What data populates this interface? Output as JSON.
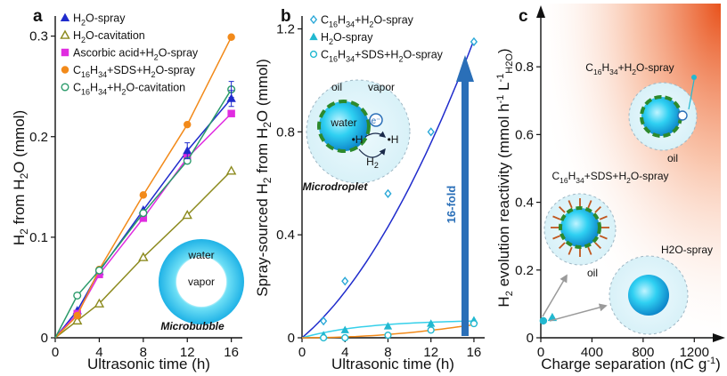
{
  "colors": {
    "blue": "#1f2bcc",
    "olive": "#8c8a1e",
    "magenta": "#e02ce0",
    "orange": "#f28a1a",
    "green": "#2a9a6a",
    "teal": "#22b8d0",
    "cyan_light": "#36d0ea",
    "arrow_blue": "#2a6fb8",
    "gradient_orange": "#e8521c"
  },
  "chart_data": [
    {
      "panel": "a",
      "type": "line",
      "xlabel": "Ultrasonic time (h)",
      "ylabel_parts": [
        "H",
        "2",
        " from H",
        "2",
        "O (mmol)"
      ],
      "xlim": [
        0,
        17
      ],
      "ylim": [
        0,
        0.32
      ],
      "xticks": [
        "0",
        "4",
        "8",
        "12",
        "16"
      ],
      "yticks": [
        "0",
        "0.1",
        "0.2",
        "0.3"
      ],
      "legend": [
        {
          "parts": [
            "H",
            "2",
            "O-spray"
          ],
          "marker": "triangle",
          "color": "blue"
        },
        {
          "parts": [
            "H",
            "2",
            "O-cavitation"
          ],
          "marker": "triangle-open",
          "color": "olive"
        },
        {
          "parts": [
            "Ascorbic acid+H",
            "2",
            "O-spray"
          ],
          "marker": "square",
          "color": "magenta"
        },
        {
          "parts": [
            "C",
            "16",
            "H",
            "34",
            "+SDS+H",
            "2",
            "O-spray"
          ],
          "marker": "circle",
          "color": "orange"
        },
        {
          "parts": [
            "C",
            "16",
            "H",
            "34",
            "+H",
            "2",
            "O-cavitation"
          ],
          "marker": "circle-open",
          "color": "green"
        }
      ],
      "series": [
        {
          "x": [
            2,
            4,
            8,
            12,
            16
          ],
          "values": [
            0.027,
            0.066,
            0.127,
            0.186,
            0.238
          ]
        },
        {
          "x": [
            2,
            4,
            8,
            12,
            16
          ],
          "values": [
            0.017,
            0.034,
            0.08,
            0.122,
            0.166
          ]
        },
        {
          "x": [
            2,
            4,
            8,
            12,
            16
          ],
          "values": [
            0.024,
            0.063,
            0.119,
            0.179,
            0.223
          ]
        },
        {
          "x": [
            2,
            4,
            8,
            12,
            16
          ],
          "values": [
            0.022,
            0.068,
            0.142,
            0.212,
            0.299
          ]
        },
        {
          "x": [
            2,
            4,
            8,
            12,
            16
          ],
          "values": [
            0.042,
            0.067,
            0.124,
            0.176,
            0.247
          ]
        }
      ],
      "inset": {
        "water": "water",
        "vapor": "vapor",
        "caption": "Microbubble"
      }
    },
    {
      "panel": "b",
      "type": "line",
      "xlabel": "Ultrasonic time (h)",
      "ylabel_parts": [
        "Spray-sourced H",
        "2",
        " from H",
        "2",
        "O (mmol)"
      ],
      "xlim": [
        0,
        17
      ],
      "ylim": [
        0,
        1.25
      ],
      "xticks": [
        "0",
        "4",
        "8",
        "12",
        "16"
      ],
      "yticks": [
        "0",
        "0.4",
        "0.8",
        "1.2"
      ],
      "legend": [
        {
          "parts": [
            "C",
            "16",
            "H",
            "34",
            "+H",
            "2",
            "O-spray"
          ],
          "marker": "diamond-open",
          "color": "blue"
        },
        {
          "parts": [
            "H",
            "2",
            "O-spray"
          ],
          "marker": "triangle",
          "color": "teal"
        },
        {
          "parts": [
            "C",
            "16",
            "H",
            "34",
            "+SDS+H",
            "2",
            "O-spray"
          ],
          "marker": "circle-open",
          "color": "teal"
        }
      ],
      "series": [
        {
          "x": [
            2,
            4,
            8,
            12,
            16
          ],
          "values": [
            0.065,
            0.22,
            0.56,
            0.8,
            1.15
          ]
        },
        {
          "x": [
            2,
            4,
            8,
            12,
            16
          ],
          "values": [
            0.01,
            0.03,
            0.045,
            0.055,
            0.068
          ]
        },
        {
          "x": [
            2,
            4,
            8,
            12,
            16
          ],
          "values": [
            0.0,
            0.0,
            0.01,
            0.03,
            0.055
          ]
        }
      ],
      "arrow_label": "16-fold",
      "inset": {
        "oil": "oil",
        "vapor": "vapor",
        "water": "water",
        "h_dot": "•H",
        "h2": "H2",
        "caption": "Microdroplet"
      }
    },
    {
      "panel": "c",
      "type": "scatter",
      "xlabel_parts": [
        "Charge separation (nC g",
        "-1",
        ")"
      ],
      "ylabel_parts": [
        "H",
        "2",
        " evolution reactivity (mmol h",
        "-1",
        " L",
        "-1",
        "H2O",
        ")"
      ],
      "xlim": [
        0,
        1400
      ],
      "ylim": [
        0,
        0.95
      ],
      "xticks": [
        "0",
        "400",
        "800",
        "1200"
      ],
      "yticks": [
        "0",
        "0.2",
        "0.4",
        "0.6",
        "0.8"
      ],
      "points": [
        {
          "x": 20,
          "y": 0.05,
          "marker": "circle",
          "color": "teal"
        },
        {
          "x": 90,
          "y": 0.06,
          "marker": "triangle",
          "color": "teal"
        }
      ],
      "labels": {
        "top": [
          "C",
          "16",
          "H",
          "34",
          "+H",
          "2",
          "O-spray"
        ],
        "mid": [
          "C",
          "16",
          "H",
          "34",
          "+SDS+H",
          "2",
          "O-spray"
        ],
        "bottom": "H2O-spray",
        "oil": "oil"
      }
    }
  ],
  "panel_letters": [
    "a",
    "b",
    "c"
  ]
}
